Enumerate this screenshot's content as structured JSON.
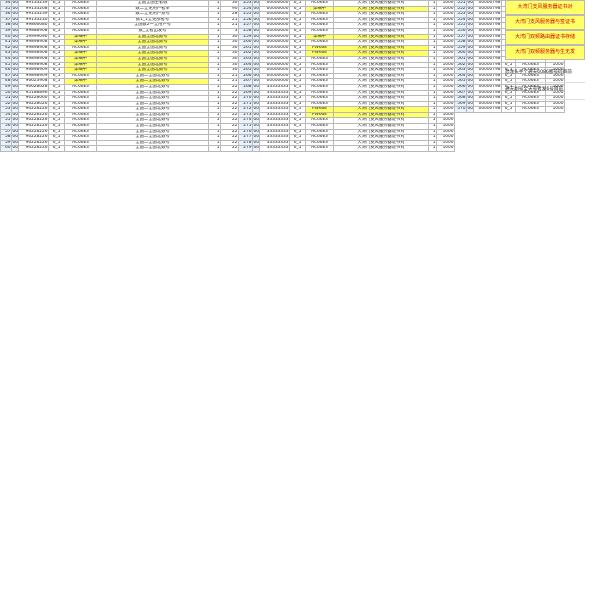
{
  "colors": {
    "green": "#3fd36a",
    "lightgreen": "#8de8a4",
    "yellow": "#ffff66",
    "orange": "#ff9933",
    "blue": "#3aa6ff",
    "lightblue": "#a7d8ff",
    "pink": "#ff99cc",
    "white": "#ffffff",
    "red": "#d40000"
  },
  "sheet": {
    "status_label": "详细中",
    "type_label": "AC66E3",
    "filter_label": "6_5"
  },
  "right_panel": {
    "items": [
      "大湾门支风服务器证书对",
      "大湾门支风服务器与签证书",
      "大湾门双频路由器证书存储",
      "大湾门双频服务器与生无发"
    ],
    "notes": [
      "恐龙头手个通天6086那号码目前",
      "通天副号全天号者发6号目前"
    ]
  },
  "blockA": {
    "rows": [
      [
        "34",
        "00",
        "99133239",
        "6_5",
        "AC66E3",
        "全国全国主者收",
        "1",
        "30"
      ],
      [
        "35",
        "00",
        "99133268",
        "6_5",
        "AC66E3",
        "数二全免用户者单",
        "1",
        "90"
      ],
      [
        "36",
        "00",
        "99133239",
        "6_5",
        "AC66E3",
        "数二全免用户双号",
        "1",
        "28"
      ],
      [
        "37",
        "00",
        "99133230",
        "6_5",
        "AC66E3",
        "数1_1全免部者号",
        "1",
        "21"
      ],
      [
        "38",
        "00",
        "99866680",
        "6_5",
        "AC66E3",
        "全国数2一全用户号",
        "1",
        "21"
      ],
      [
        "39",
        "00",
        "99888908",
        "6_5",
        "AC66E3",
        "数_全者出发号",
        "1",
        "3"
      ],
      [
        "40",
        "00",
        "59999090",
        "6_5",
        "详细中",
        "全国全国北数号",
        "1",
        "30"
      ],
      [
        "41",
        "00",
        "99898908",
        "6_5",
        "详细中",
        "全国全国北数号",
        "1",
        "30"
      ],
      [
        "42",
        "00",
        "99898908",
        "6_5",
        "AC66E3",
        "全国全国北数号",
        "1",
        "30"
      ],
      [
        "43",
        "00",
        "99898908",
        "6_5",
        "详细中",
        "全国全国北数号",
        "1",
        "30"
      ],
      [
        "44",
        "00",
        "99898908",
        "6_5",
        "详细中",
        "全国全国北数号",
        "1",
        "30"
      ],
      [
        "45",
        "00",
        "99898908",
        "6_5",
        "详细中",
        "全国全国北数号",
        "1",
        "30"
      ],
      [
        "46",
        "00",
        "99898909",
        "6_5",
        "详细中",
        "全国全国北数号",
        "1",
        "30"
      ],
      [
        "47",
        "00",
        "99898909",
        "6_5",
        "AC66E3",
        "全国二全国北数号",
        "1",
        "21"
      ],
      [
        "48",
        "00",
        "96623908",
        "6_5",
        "详细中",
        "全国二全国北数号",
        "1",
        "21"
      ],
      [
        "49",
        "00",
        "96628628",
        "6_5",
        "AC66E3",
        "全国二全国北数号",
        "1",
        "22"
      ],
      [
        "50",
        "00",
        "95188896",
        "6_5",
        "AC66E3",
        "全国二全国北数号",
        "1",
        "22"
      ],
      [
        "51",
        "00",
        "96228060",
        "6_5",
        "AC66E3",
        "全国二全国北数号",
        "1",
        "22"
      ],
      [
        "52",
        "00",
        "96228026",
        "6_5",
        "AC66E3",
        "全国二全国北数号",
        "1",
        "22"
      ],
      [
        "53",
        "00",
        "96228226",
        "6_5",
        "AC66E3",
        "全国二全国北数号",
        "1",
        "22"
      ],
      [
        "54",
        "00",
        "96228226",
        "6_5",
        "AC66E3",
        "全国二全国北数号",
        "1",
        "22"
      ],
      [
        "55",
        "00",
        "96228226",
        "6_5",
        "AC66E3",
        "全国二全国北数号",
        "1",
        "22"
      ],
      [
        "56",
        "00",
        "96228226",
        "6_5",
        "AC66E3",
        "全国二全国北数号",
        "1",
        "22"
      ],
      [
        "57",
        "00",
        "96228226",
        "6_5",
        "AC66E3",
        "全国二全国北数号",
        "1",
        "22"
      ],
      [
        "58",
        "00",
        "96228226",
        "6_5",
        "AC66E3",
        "全国二全国北数号",
        "1",
        "22"
      ],
      [
        "59",
        "00",
        "96228226",
        "6_5",
        "AC66E3",
        "全国二全国北数号",
        "1",
        "22"
      ],
      [
        "60",
        "00",
        "96228226",
        "6_5",
        "AC66E3",
        "全国二全国北数号",
        "1",
        "22"
      ]
    ]
  },
  "blockB": {
    "rows": [
      [
        "253",
        "00",
        "00000000",
        "6_5",
        "AC66E3",
        "大湾门支风服务器证书对",
        "1",
        "1000"
      ],
      [
        "254",
        "00",
        "00000000",
        "6_5",
        "详细中",
        "大湾门支风服务器证书对",
        "1",
        "1000"
      ],
      [
        "255",
        "00",
        "00000000",
        "6_5",
        "AC66E3",
        "大湾门支风服务器证书对",
        "1",
        "1000"
      ],
      [
        "256",
        "00",
        "00000000",
        "6_5",
        "AC66E3",
        "大湾门支风服务器证书对",
        "1",
        "1000"
      ],
      [
        "257",
        "00",
        "00000000",
        "6_5",
        "AC66E3",
        "大湾门支风服务器证书对",
        "1",
        "1000"
      ],
      [
        "258",
        "00",
        "00000000",
        "6_5",
        "AC66E3",
        "大湾门支风服务器证书对",
        "1",
        "1000"
      ],
      [
        "259",
        "00",
        "00000000",
        "6_5",
        "详细中",
        "大湾门支风服务器证书对",
        "1",
        "1000"
      ],
      [
        "260",
        "00",
        "00000000",
        "6_5",
        "AC66E3",
        "大湾门支风服务器证书对",
        "1",
        "1000"
      ],
      [
        "261",
        "00",
        "00000000",
        "6_5",
        "PW66E",
        "大湾门支风服务器证书对",
        "1",
        "1000"
      ],
      [
        "262",
        "00",
        "00000000",
        "6_5",
        "PW66E",
        "大湾门支风服务器证书对",
        "1",
        "1000"
      ],
      [
        "263",
        "00",
        "00000000",
        "6_5",
        "AC66E3",
        "大湾门支风服务器证书对",
        "1",
        "1000"
      ],
      [
        "264",
        "00",
        "00000000",
        "6_5",
        "AC66E3",
        "大湾门支风服务器证书对",
        "1",
        "1000"
      ],
      [
        "265",
        "00",
        "00000000",
        "6_5",
        "AC66E3",
        "大湾门支风服务器证书对",
        "1",
        "1000"
      ],
      [
        "266",
        "00",
        "00000000",
        "6_5",
        "AC66E3",
        "大湾门支风服务器证书对",
        "1",
        "1000"
      ],
      [
        "267",
        "00",
        "00000000",
        "6_5",
        "AC66E3",
        "大湾门支风服务器证书对",
        "1",
        "1000"
      ],
      [
        "268",
        "00",
        "33333333",
        "6_5",
        "AC66E3",
        "大湾门支风服务器证书对",
        "1",
        "1000"
      ],
      [
        "269",
        "00",
        "33333333",
        "6_5",
        "AC66E3",
        "大湾门支风服务器证书对",
        "1",
        "1000"
      ],
      [
        "270",
        "00",
        "33333333",
        "6_5",
        "AC66E3",
        "大湾门支风服务器证书对",
        "1",
        "1000"
      ],
      [
        "271",
        "00",
        "33333333",
        "6_5",
        "AC66E3",
        "大湾门支风服务器证书对",
        "1",
        "1000"
      ],
      [
        "272",
        "00",
        "33333333",
        "6_5",
        "PW66E",
        "大湾门支风服务器证书对",
        "1",
        "1000"
      ],
      [
        "273",
        "00",
        "33333333",
        "6_5",
        "PW66E",
        "大湾门支风服务器证书对",
        "1",
        "1000"
      ],
      [
        "274",
        "00",
        "33333333",
        "6_5",
        "AC66E3",
        "大湾门支风服务器证书对",
        "1",
        "1000"
      ],
      [
        "275",
        "00",
        "33333333",
        "6_5",
        "AC66E3",
        "大湾门支风服务器证书对",
        "1",
        "1000"
      ],
      [
        "276",
        "00",
        "33333333",
        "6_5",
        "AC66E3",
        "大湾门支风服务器证书对",
        "1",
        "1000"
      ],
      [
        "277",
        "00",
        "33333333",
        "6_5",
        "AC66E3",
        "大湾门支风服务器证书对",
        "1",
        "1000"
      ],
      [
        "278",
        "00",
        "33333333",
        "6_5",
        "AC66E3",
        "大湾门支风服务器证书对",
        "1",
        "1000"
      ],
      [
        "279",
        "00",
        "33333333",
        "6_5",
        "AC66E3",
        "大湾门支风服务器证书对",
        "1",
        "1000"
      ]
    ]
  },
  "blockC": {
    "rows": [
      [
        "551",
        "00",
        "00000798",
        "6_5",
        "AC66E3",
        "1000"
      ],
      [
        "552",
        "00",
        "00000798",
        "6_5",
        "AC66E3",
        "1000"
      ],
      [
        "553",
        "00",
        "00000798",
        "6_5",
        "AC66E3",
        "1000"
      ],
      [
        "554",
        "00",
        "00000798",
        "6_5",
        "AC66E3",
        "1000"
      ],
      [
        "555",
        "00",
        "00000798",
        "6_5",
        "AC66E3",
        "1000"
      ],
      [
        "556",
        "00",
        "00000798",
        "6_5",
        "AC66E3",
        "1000"
      ],
      [
        "557",
        "00",
        "00000798",
        "6_5",
        "AC66E3",
        "1000"
      ],
      [
        "558",
        "00",
        "00000798",
        "6_5",
        "AC66E3",
        "1000"
      ],
      [
        "559",
        "00",
        "00000798",
        "6_5",
        "AC66E3",
        "1000"
      ],
      [
        "560",
        "00",
        "00000798",
        "6_5",
        "AC66E3",
        "1000"
      ],
      [
        "561",
        "00",
        "00000798",
        "6_5",
        "AC66E3",
        "1000"
      ],
      [
        "562",
        "00",
        "00000798",
        "6_5",
        "AC66E3",
        "1000"
      ],
      [
        "563",
        "00",
        "00000798",
        "6_5",
        "AC66E3",
        "1000"
      ],
      [
        "564",
        "00",
        "00000798",
        "6_5",
        "AC66E3",
        "1000"
      ],
      [
        "565",
        "00",
        "00000798",
        "6_5",
        "AC66E3",
        "1000"
      ],
      [
        "566",
        "00",
        "00000798",
        "6_5",
        "AC66E3",
        "1000"
      ],
      [
        "567",
        "00",
        "00000798",
        "6_5",
        "AC66E3",
        "1000"
      ],
      [
        "568",
        "00",
        "00000798",
        "6_5",
        "AC66E3",
        "1000"
      ],
      [
        "569",
        "00",
        "00000798",
        "6_5",
        "AC66E3",
        "1000"
      ],
      [
        "570",
        "00",
        "00000798",
        "6_5",
        "AC66E3",
        "1000"
      ]
    ]
  },
  "row_fills": {
    "blockA": [
      "white",
      "white",
      "white",
      "white",
      "white",
      "white",
      "yellow",
      "yellow",
      "white",
      "yellow",
      "yellow",
      "yellow",
      "yellow",
      "white",
      "yellow",
      "white",
      "white",
      "white",
      "white",
      "white",
      "white",
      "white",
      "white",
      "white",
      "white",
      "white",
      "white"
    ],
    "blockB": [
      "white",
      "yellow",
      "white",
      "white",
      "white",
      "white",
      "yellow",
      "white",
      "yellow",
      "yellow",
      "white",
      "white",
      "white",
      "white",
      "white",
      "white",
      "white",
      "white",
      "white",
      "yellow",
      "yellow",
      "white",
      "white",
      "white",
      "white",
      "white",
      "white"
    ]
  }
}
